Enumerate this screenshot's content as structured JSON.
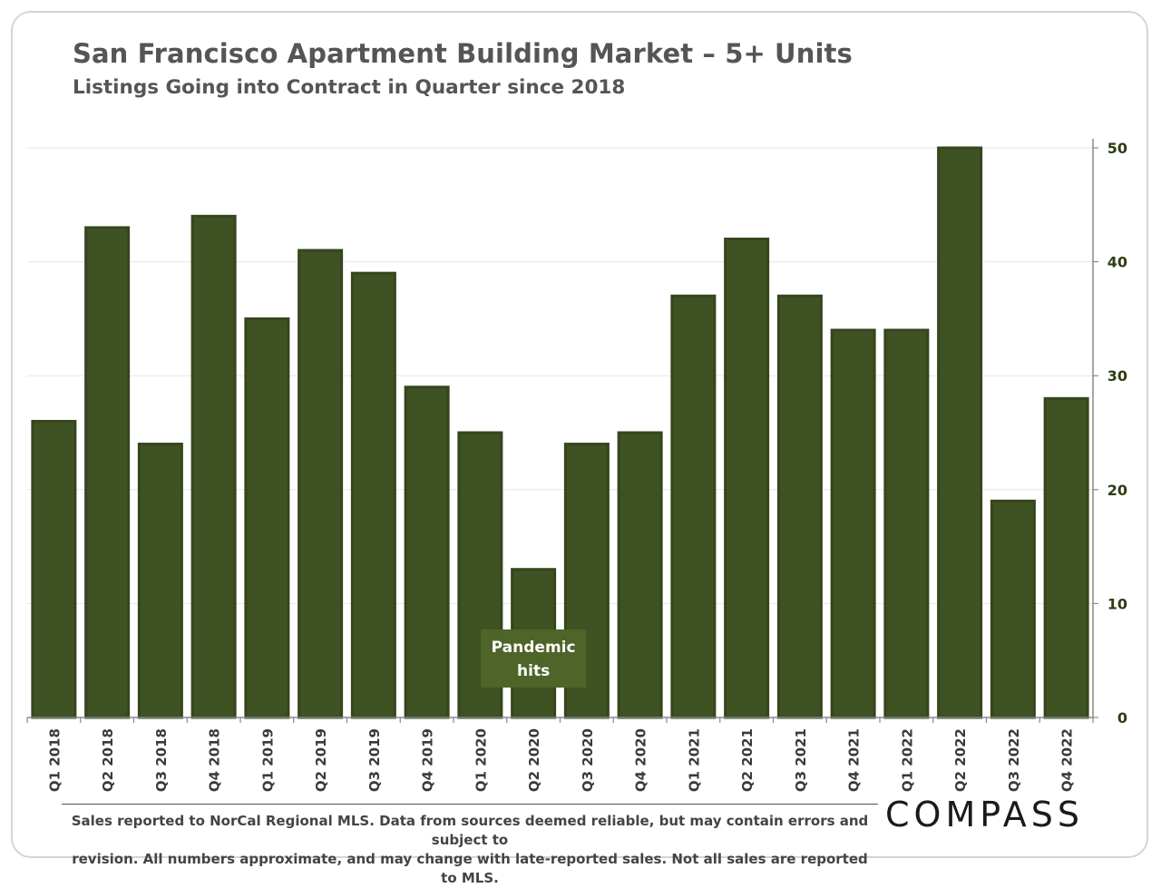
{
  "header": {
    "title": "San Francisco Apartment Building Market – 5+ Units",
    "subtitle": "Listings Going into Contract in Quarter since 2018"
  },
  "annotation": {
    "line1": "Pandemic",
    "line2": "hits",
    "quarter": "Q2 2020"
  },
  "footer": {
    "line1": "Sales reported to NorCal Regional MLS. Data from sources deemed reliable, but may contain errors and subject to",
    "line2": "revision. All numbers approximate, and may change with late-reported sales. Not all sales are reported to MLS."
  },
  "logo": {
    "text": "COMPASS"
  },
  "colors": {
    "bar": "#3f5224",
    "bar_edge": "#35461d",
    "annotation_bg": "#4e6428",
    "axis_text": "#2e3d14"
  },
  "chart_data": {
    "type": "bar",
    "title": "San Francisco Apartment Building Market – 5+ Units",
    "subtitle": "Listings Going into Contract in Quarter since 2018",
    "xlabel": "",
    "ylabel": "",
    "y_axis_side": "right",
    "ylim": [
      0,
      50
    ],
    "yticks": [
      0,
      10,
      20,
      30,
      40,
      50
    ],
    "grid": true,
    "legend": "none",
    "categories": [
      "Q1 2018",
      "Q2 2018",
      "Q3 2018",
      "Q4 2018",
      "Q1 2019",
      "Q2 2019",
      "Q3 2019",
      "Q4 2019",
      "Q1 2020",
      "Q2 2020",
      "Q3 2020",
      "Q4 2020",
      "Q1 2021",
      "Q2 2021",
      "Q3 2021",
      "Q4 2021",
      "Q1 2022",
      "Q2 2022",
      "Q3 2022",
      "Q4 2022"
    ],
    "values": [
      26,
      43,
      24,
      44,
      35,
      41,
      39,
      29,
      25,
      13,
      24,
      25,
      37,
      42,
      37,
      34,
      34,
      50,
      19,
      28
    ]
  }
}
